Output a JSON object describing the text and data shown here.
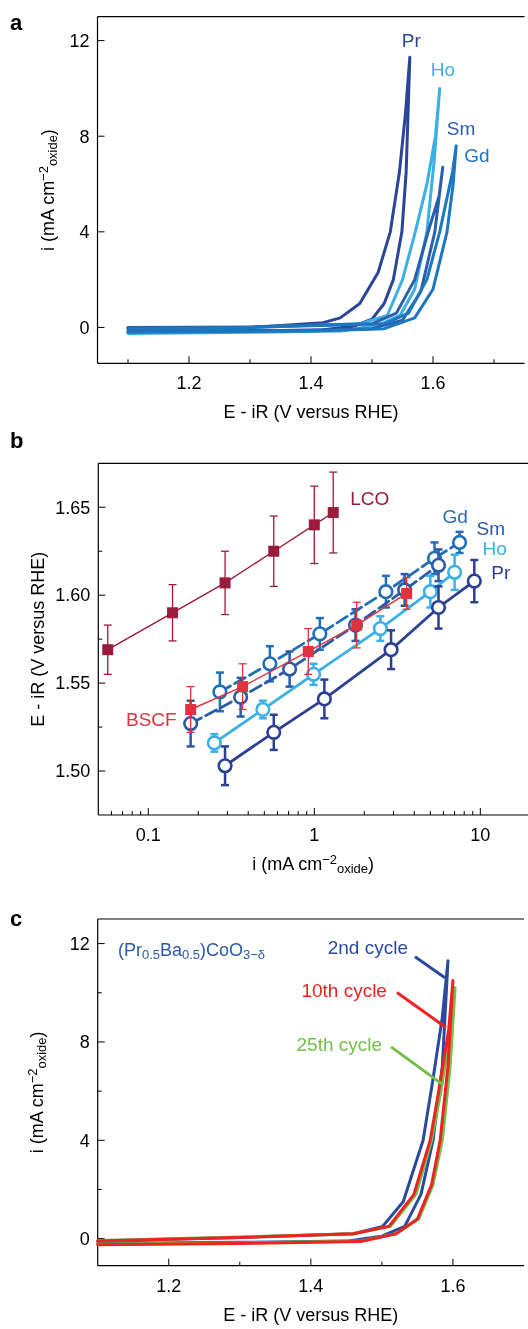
{
  "chart_data": [
    {
      "type": "line",
      "title": "a",
      "xlabel": "E - iR (V versus RHE)",
      "ylabel": "i (mA cm$^{−2}$$_{oxide}$)",
      "xlim": [
        1.05,
        1.75
      ],
      "ylim": [
        -1.5,
        13
      ],
      "xticks": [
        {
          "value": 1.1,
          "label": null
        },
        1.2,
        {
          "value": 1.3,
          "label": null
        },
        1.4,
        {
          "value": 1.5,
          "label": null
        },
        1.6,
        {
          "value": 1.7,
          "label": null
        }
      ],
      "yticks": [
        0,
        4,
        8,
        12
      ],
      "series": [
        {
          "name": "Pr",
          "color": "#2b4597",
          "x": [
            1.1,
            1.3,
            1.42,
            1.47,
            1.5,
            1.52,
            1.535,
            1.549,
            1.556,
            1.562,
            1.555,
            1.545,
            1.53,
            1.51,
            1.48,
            1.448,
            1.42,
            1.3,
            1.1
          ],
          "values": [
            -0.2,
            -0.15,
            -0.1,
            0.05,
            0.35,
            1.0,
            2.0,
            4.0,
            6.5,
            11.3,
            9.0,
            6.5,
            4.0,
            2.3,
            1.0,
            0.4,
            0.2,
            0.0,
            -0.05
          ]
        },
        {
          "name": "Ho",
          "color": "#3cb0e6",
          "x": [
            1.1,
            1.3,
            1.45,
            1.51,
            1.546,
            1.57,
            1.59,
            1.602,
            1.611,
            1.604,
            1.59,
            1.571,
            1.55,
            1.525,
            1.48,
            1.3,
            1.1
          ],
          "values": [
            -0.25,
            -0.2,
            -0.15,
            0.1,
            0.5,
            1.6,
            4.0,
            7.0,
            10.0,
            8.0,
            6.0,
            4.0,
            2.0,
            0.5,
            0.15,
            0.0,
            0.0
          ]
        },
        {
          "name": "Sm",
          "color": "#2c5fab",
          "x": [
            1.1,
            1.4,
            1.5,
            1.55,
            1.58,
            1.603,
            1.616,
            1.61,
            1.592,
            1.57,
            1.54,
            1.5,
            1.3,
            1.1
          ],
          "values": [
            -0.15,
            -0.12,
            -0.05,
            0.3,
            1.5,
            4.0,
            6.7,
            5.5,
            4.0,
            2.0,
            0.6,
            0.15,
            0.02,
            0.0
          ]
        },
        {
          "name": "Gd",
          "color": "#1d77c0",
          "x": [
            1.1,
            1.4,
            1.52,
            1.57,
            1.6,
            1.623,
            1.633,
            1.638,
            1.632,
            1.611,
            1.59,
            1.56,
            1.52,
            1.3,
            1.1
          ],
          "values": [
            -0.2,
            -0.15,
            -0.05,
            0.4,
            1.6,
            4.0,
            6.0,
            7.6,
            6.5,
            4.0,
            2.0,
            0.6,
            0.15,
            0.0,
            -0.05
          ]
        }
      ]
    },
    {
      "type": "line",
      "title": "b",
      "xlabel": "i (mA cm$^{−2}$$_{oxide}$)",
      "ylabel": "E - iR (V versus RHE)",
      "log": "x",
      "xlim": [
        0.05,
        20
      ],
      "ylim": [
        1.475,
        1.675
      ],
      "xticks": [
        {
          "value": 0.06,
          "label": null
        },
        {
          "value": 0.07,
          "label": null
        },
        {
          "value": 0.08,
          "label": null
        },
        {
          "value": 0.09,
          "label": null
        },
        0.1,
        {
          "value": 0.2,
          "label": null
        },
        {
          "value": 0.3,
          "label": null
        },
        {
          "value": 0.4,
          "label": null
        },
        {
          "value": 0.5,
          "label": null
        },
        {
          "value": 0.6,
          "label": null
        },
        {
          "value": 0.7,
          "label": null
        },
        {
          "value": 0.8,
          "label": null
        },
        {
          "value": 0.9,
          "label": null
        },
        1,
        {
          "value": 2,
          "label": null
        },
        {
          "value": 3,
          "label": null
        },
        {
          "value": 4,
          "label": null
        },
        {
          "value": 5,
          "label": null
        },
        {
          "value": 6,
          "label": null
        },
        {
          "value": 7,
          "label": null
        },
        {
          "value": 8,
          "label": null
        },
        {
          "value": 9,
          "label": null
        },
        10
      ],
      "yticks": [
        {
          "value": 1.5,
          "label": "1.50"
        },
        {
          "value": 1.525,
          "label": null
        },
        1.55,
        {
          "value": 1.575,
          "label": null
        },
        {
          "value": 1.6,
          "label": "1.60"
        },
        {
          "value": 1.625,
          "label": null
        },
        1.65
      ],
      "series": [
        {
          "name": "LCO",
          "color": "#9b1b3b",
          "marker": "square",
          "line_style": "solid",
          "x": [
            0.057,
            0.14,
            0.29,
            0.57,
            1.0,
            1.3
          ],
          "values": [
            1.569,
            1.59,
            1.607,
            1.625,
            1.64,
            1.647
          ],
          "errors": [
            0.014,
            0.016,
            0.018,
            0.02,
            0.022,
            0.023
          ]
        },
        {
          "name": "BSCF",
          "color": "#e0333f",
          "marker": "square",
          "line_style": "solid",
          "x": [
            0.18,
            0.37,
            0.92,
            1.8,
            3.6
          ],
          "values": [
            1.535,
            1.548,
            1.568,
            1.583,
            1.601
          ],
          "errors": [
            0.013,
            0.013,
            0.013,
            0.013,
            0.009
          ]
        },
        {
          "name": "Gd",
          "color": "#1f6fb6",
          "marker": "circle",
          "line_style": "dashed",
          "x": [
            0.27,
            0.54,
            1.08,
            2.7,
            5.3,
            7.5
          ],
          "values": [
            1.545,
            1.561,
            1.578,
            1.602,
            1.621,
            1.63
          ],
          "errors": [
            0.011,
            0.01,
            0.009,
            0.009,
            0.009,
            0.006
          ]
        },
        {
          "name": "Sm",
          "color": "#2b5aa6",
          "marker": "circle",
          "line_style": "dashed",
          "x": [
            0.18,
            0.36,
            0.71,
            1.77,
            3.5,
            5.6
          ],
          "values": [
            1.527,
            1.542,
            1.558,
            1.583,
            1.603,
            1.617
          ],
          "errors": [
            0.013,
            0.011,
            0.01,
            0.009,
            0.009,
            0.009
          ]
        },
        {
          "name": "Ho",
          "color": "#3cb0e6",
          "marker": "circle",
          "line_style": "solid",
          "x": [
            0.25,
            0.49,
            0.99,
            2.5,
            5.0,
            7.0
          ],
          "values": [
            1.516,
            1.535,
            1.555,
            1.581,
            1.602,
            1.613
          ],
          "errors": [
            0.005,
            0.005,
            0.006,
            0.007,
            0.009,
            0.01
          ]
        },
        {
          "name": "Pr",
          "color": "#2b3f93",
          "marker": "circle",
          "line_style": "solid",
          "x": [
            0.29,
            0.57,
            1.15,
            2.9,
            5.6,
            9.2
          ],
          "values": [
            1.503,
            1.522,
            1.541,
            1.569,
            1.593,
            1.608
          ],
          "errors": [
            0.011,
            0.01,
            0.011,
            0.011,
            0.012,
            0.012
          ]
        }
      ]
    },
    {
      "type": "line",
      "title": "c",
      "xlabel": "E - iR (V versus RHE)",
      "ylabel": "i (mA cm$^{−2}$$_{oxide}$)",
      "xlim": [
        1.1,
        1.7
      ],
      "ylim": [
        -1.1,
        13
      ],
      "xticks": [
        1.2,
        {
          "value": 1.3,
          "label": null
        },
        1.4,
        {
          "value": 1.5,
          "label": null
        },
        1.6
      ],
      "yticks": [
        0,
        {
          "value": 2,
          "label": null
        },
        4,
        {
          "value": 6,
          "label": null
        },
        8,
        {
          "value": 10,
          "label": null
        },
        12
      ],
      "annotations": [
        "(Pr$_{0.5}$Ba$_{0.5}$)CoO$_{3−δ}$"
      ],
      "series": [
        {
          "name": "2nd cycle",
          "color": "#2a4a9c",
          "x": [
            1.1,
            1.3,
            1.45,
            1.5,
            1.532,
            1.555,
            1.572,
            1.585,
            1.593,
            1.585,
            1.572,
            1.558,
            1.53,
            1.501,
            1.46,
            1.3,
            1.1
          ],
          "values": [
            -0.2,
            -0.15,
            -0.1,
            0.1,
            0.5,
            1.8,
            4.0,
            7.0,
            11.3,
            9.0,
            6.5,
            4.0,
            1.5,
            0.5,
            0.2,
            0.05,
            -0.1
          ]
        },
        {
          "name": "25th cycle",
          "color": "#74bf46",
          "x": [
            1.1,
            1.3,
            1.47,
            1.52,
            1.552,
            1.572,
            1.585,
            1.596,
            1.603,
            1.597,
            1.583,
            1.57,
            1.548,
            1.512,
            1.46,
            1.3,
            1.1
          ],
          "values": [
            -0.22,
            -0.18,
            -0.1,
            0.2,
            0.8,
            2.2,
            4.0,
            7.0,
            10.2,
            8.5,
            6.0,
            4.0,
            1.8,
            0.5,
            0.2,
            0.07,
            -0.08
          ]
        },
        {
          "name": "10th cycle",
          "color": "#ee2222",
          "x": [
            1.1,
            1.3,
            1.47,
            1.52,
            1.55,
            1.57,
            1.582,
            1.593,
            1.6,
            1.594,
            1.58,
            1.568,
            1.545,
            1.51,
            1.46,
            1.3,
            1.1
          ],
          "values": [
            -0.25,
            -0.2,
            -0.12,
            0.2,
            0.8,
            2.2,
            4.0,
            7.0,
            10.5,
            8.5,
            6.0,
            4.0,
            1.8,
            0.5,
            0.2,
            0.05,
            -0.1
          ]
        }
      ]
    }
  ]
}
